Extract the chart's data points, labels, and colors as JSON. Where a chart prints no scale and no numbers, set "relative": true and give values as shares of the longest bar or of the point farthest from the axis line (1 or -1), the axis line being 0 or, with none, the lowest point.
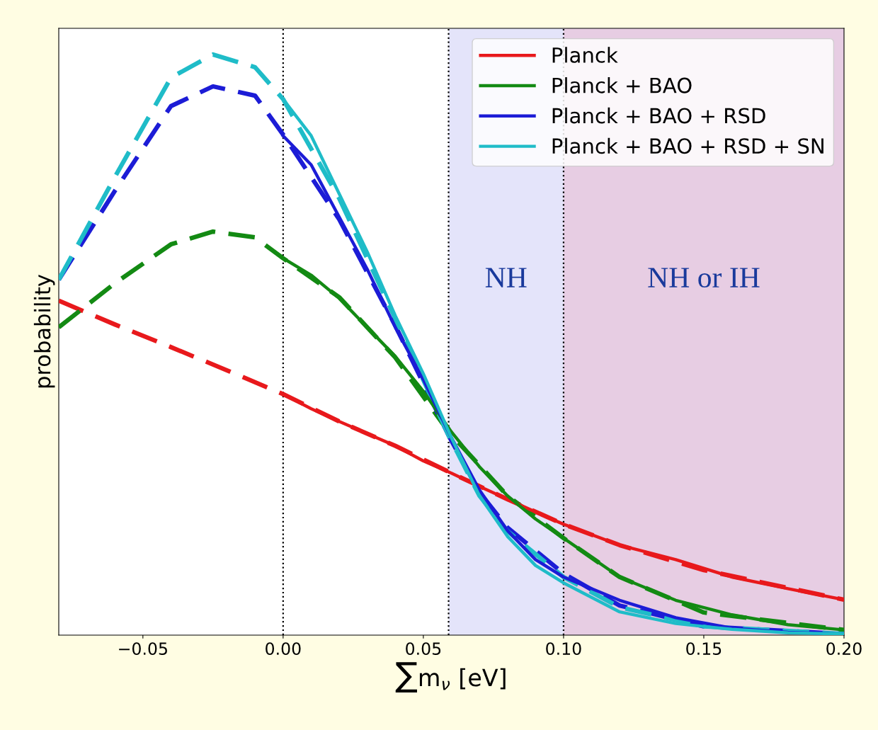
{
  "chart_data": {
    "type": "line",
    "relative": true,
    "xlabel": "∑m$_{ν}$ [eV]",
    "ylabel": "probability",
    "xlim": [
      -0.08,
      0.2
    ],
    "xticks": [
      {
        "value": -0.05,
        "label": "−0.05"
      },
      {
        "value": 0.0,
        "label": "0.00"
      },
      {
        "value": 0.05,
        "label": "0.05"
      },
      {
        "value": 0.1,
        "label": "0.10"
      },
      {
        "value": 0.15,
        "label": "0.15"
      },
      {
        "value": 0.2,
        "label": "0.20"
      }
    ],
    "tick_labels": "x",
    "grid": false,
    "legend": "top right",
    "ref_lines": [
      {
        "axis": "x",
        "value": 0.0,
        "line_style": "dotted",
        "color": "#000000"
      },
      {
        "axis": "x",
        "value": 0.059,
        "line_style": "dotted",
        "color": "#000000"
      },
      {
        "axis": "x",
        "value": 0.1,
        "line_style": "dotted",
        "color": "#000000"
      }
    ],
    "bands": [
      {
        "axis": "x",
        "from": 0.059,
        "to": 0.1,
        "label": "NH",
        "color": "#e4e4fa"
      },
      {
        "axis": "x",
        "from": 0.1,
        "to": 0.2,
        "label": "NH or IH",
        "color": "#e7cde3"
      }
    ],
    "series": [
      {
        "color": "#e8191c",
        "line_style": "dashed",
        "x": [
          -0.08,
          -0.06,
          -0.04,
          -0.02,
          0.0,
          0.02,
          0.04,
          0.06,
          0.08,
          0.1,
          0.12,
          0.15,
          0.2
        ],
        "values": [
          0.576,
          0.535,
          0.496,
          0.456,
          0.415,
          0.368,
          0.326,
          0.279,
          0.234,
          0.191,
          0.155,
          0.112,
          0.061
        ]
      },
      {
        "color": "#138a13",
        "line_style": "dashed",
        "x": [
          -0.08,
          -0.06,
          -0.04,
          -0.025,
          -0.01,
          0.0,
          0.02,
          0.04,
          0.059,
          0.08,
          0.1,
          0.12,
          0.15,
          0.2
        ],
        "values": [
          0.53,
          0.606,
          0.673,
          0.695,
          0.685,
          0.649,
          0.582,
          0.478,
          0.35,
          0.24,
          0.167,
          0.1,
          0.039,
          0.009
        ]
      },
      {
        "color": "#1c1cd6",
        "line_style": "dashed",
        "x": [
          -0.08,
          -0.06,
          -0.04,
          -0.025,
          -0.01,
          0.0,
          0.02,
          0.04,
          0.059,
          0.07,
          0.08,
          0.1,
          0.12,
          0.15,
          0.2
        ],
        "values": [
          0.612,
          0.765,
          0.911,
          0.945,
          0.929,
          0.862,
          0.716,
          0.533,
          0.344,
          0.246,
          0.185,
          0.106,
          0.051,
          0.015,
          0.002
        ]
      },
      {
        "color": "#1fbcc8",
        "line_style": "dashed",
        "x": [
          -0.08,
          -0.06,
          -0.04,
          -0.025,
          -0.01,
          0.0,
          0.02,
          0.04,
          0.059,
          0.07,
          0.08,
          0.1,
          0.12,
          0.15,
          0.2
        ],
        "values": [
          0.612,
          0.789,
          0.96,
          1.0,
          0.978,
          0.923,
          0.752,
          0.545,
          0.344,
          0.24,
          0.179,
          0.1,
          0.048,
          0.015,
          0.002
        ]
      },
      {
        "name": "Planck",
        "color": "#e8191c",
        "line_style": "solid",
        "x": [
          0.0,
          0.01,
          0.02,
          0.03,
          0.04,
          0.05,
          0.06,
          0.07,
          0.08,
          0.09,
          0.1,
          0.12,
          0.14,
          0.16,
          0.18,
          0.2
        ],
        "values": [
          0.415,
          0.39,
          0.368,
          0.347,
          0.326,
          0.3,
          0.279,
          0.256,
          0.234,
          0.212,
          0.191,
          0.155,
          0.13,
          0.1,
          0.08,
          0.061
        ]
      },
      {
        "name": "Planck + BAO",
        "color": "#138a13",
        "line_style": "solid",
        "x": [
          0.0,
          0.01,
          0.02,
          0.03,
          0.04,
          0.05,
          0.06,
          0.07,
          0.08,
          0.09,
          0.1,
          0.12,
          0.14,
          0.16,
          0.18,
          0.2
        ],
        "values": [
          0.649,
          0.62,
          0.58,
          0.53,
          0.48,
          0.42,
          0.35,
          0.29,
          0.24,
          0.2,
          0.167,
          0.1,
          0.06,
          0.035,
          0.018,
          0.009
        ]
      },
      {
        "name": "Planck + BAO + RSD",
        "color": "#1c1cd6",
        "line_style": "solid",
        "x": [
          0.0,
          0.01,
          0.02,
          0.03,
          0.04,
          0.05,
          0.06,
          0.07,
          0.08,
          0.09,
          0.1,
          0.12,
          0.14,
          0.16,
          0.18,
          0.2
        ],
        "values": [
          0.86,
          0.81,
          0.72,
          0.63,
          0.53,
          0.44,
          0.34,
          0.25,
          0.18,
          0.13,
          0.1,
          0.06,
          0.03,
          0.012,
          0.005,
          0.002
        ]
      },
      {
        "name": "Planck + BAO + RSD + SN",
        "color": "#1fbcc8",
        "line_style": "solid",
        "x": [
          0.0,
          0.01,
          0.02,
          0.03,
          0.04,
          0.05,
          0.06,
          0.07,
          0.08,
          0.09,
          0.1,
          0.12,
          0.14,
          0.16,
          0.18,
          0.2
        ],
        "values": [
          0.923,
          0.86,
          0.76,
          0.66,
          0.55,
          0.45,
          0.34,
          0.24,
          0.17,
          0.12,
          0.09,
          0.04,
          0.02,
          0.01,
          0.004,
          0.002
        ]
      }
    ]
  }
}
